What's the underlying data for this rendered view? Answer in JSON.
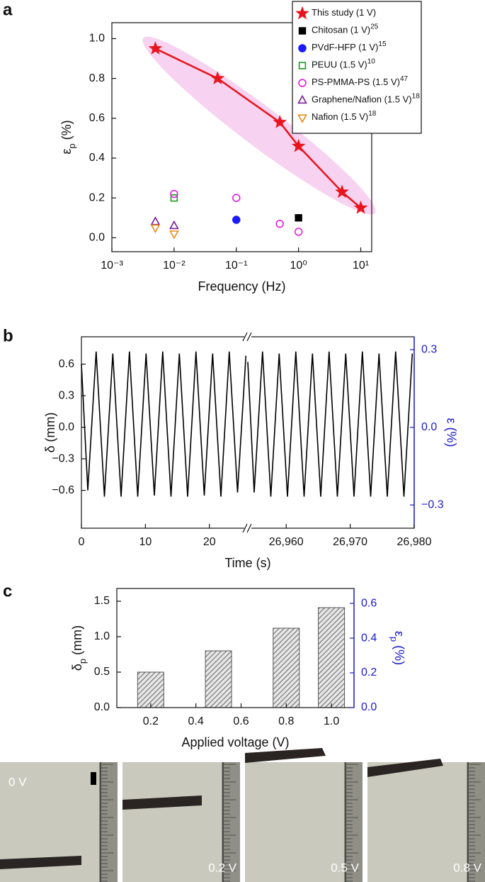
{
  "chart_data": [
    {
      "type": "scatter",
      "panel": "a",
      "xscale": "log",
      "xlabel": "Frequency (Hz)",
      "ylabel": {
        "main": "ε",
        "sub": "p",
        "rest": " (%)"
      },
      "xlim": [
        0.001,
        15
      ],
      "ylim": [
        -0.07,
        1.08
      ],
      "xticks": [
        {
          "value": 0.001,
          "label": "10⁻³"
        },
        {
          "value": 0.01,
          "label": "10⁻²"
        },
        {
          "value": 0.1,
          "label": "10⁻¹"
        },
        {
          "value": 1,
          "label": "10⁰"
        },
        {
          "value": 10,
          "label": "10¹"
        }
      ],
      "yticks": [
        {
          "value": 0,
          "label": "0.0"
        },
        0.2,
        0.4,
        0.6,
        0.8,
        {
          "value": 1,
          "label": "1.0"
        }
      ],
      "legend": "upper right",
      "series": [
        {
          "name": "This study (1 V)",
          "color": "#e8141c",
          "marker": "star",
          "filled": true,
          "line": true,
          "x": [
            0.005,
            0.05,
            0.5,
            1,
            5,
            10
          ],
          "values": [
            0.95,
            0.8,
            0.58,
            0.46,
            0.23,
            0.15
          ]
        },
        {
          "name": "Chitosan (1 V)",
          "ref": "25",
          "color": "#000000",
          "marker": "square",
          "filled": true,
          "x": [
            1
          ],
          "values": [
            0.1
          ]
        },
        {
          "name": "PVdF-HFP (1 V)",
          "ref": "15",
          "color": "#1a1aff",
          "marker": "circle",
          "filled": true,
          "x": [
            0.1
          ],
          "values": [
            0.09
          ]
        },
        {
          "name": "PEUU (1.5 V)",
          "ref": "10",
          "color": "#1a9a1a",
          "marker": "square",
          "filled": false,
          "x": [
            0.01
          ],
          "values": [
            0.2
          ]
        },
        {
          "name": "PS-PMMA-PS (1.5 V)",
          "ref": "47",
          "color": "#e020e0",
          "marker": "circle",
          "filled": false,
          "x": [
            0.01,
            0.1,
            0.5,
            1
          ],
          "values": [
            0.22,
            0.2,
            0.07,
            0.03
          ]
        },
        {
          "name": "Graphene/Nafion (1.5 V)",
          "ref": "18",
          "color": "#7a1f9a",
          "marker": "triangle-up",
          "filled": false,
          "x": [
            0.005,
            0.01
          ],
          "values": [
            0.08,
            0.06
          ]
        },
        {
          "name": "Nafion (1.5 V)",
          "ref": "18",
          "color": "#e8891a",
          "marker": "triangle-down",
          "filled": false,
          "x": [
            0.005,
            0.01
          ],
          "values": [
            0.05,
            0.02
          ]
        }
      ]
    },
    {
      "type": "line",
      "panel": "b",
      "xlabel": "Time (s)",
      "ylabel": "δ (mm)",
      "y2label": "ε (%)",
      "xlim": [
        0,
        26980
      ],
      "xbreak": [
        26,
        26954
      ],
      "ylim": [
        -0.96,
        0.86
      ],
      "y2lim": [
        -0.39,
        0.35
      ],
      "xticks": [
        0,
        10,
        20,
        {
          "value": 26960,
          "label": "26,960"
        },
        {
          "value": 26970,
          "label": "26,970"
        },
        {
          "value": 26980,
          "label": "26,980"
        }
      ],
      "yticks": [
        0.6,
        0.3,
        {
          "value": 0,
          "label": "0.0"
        },
        {
          "value": -0.3,
          "label": "−0.3"
        },
        {
          "value": -0.6,
          "label": "−0.6"
        }
      ],
      "y2ticks": [
        0.3,
        {
          "value": 0,
          "label": "0.0"
        },
        {
          "value": -0.3,
          "label": "−0.3"
        }
      ],
      "y2color": "#1a1acc",
      "series": [
        {
          "color": "#000000",
          "x": [
            0,
            1.0,
            2.3,
            3.6,
            4.9,
            6.2,
            7.5,
            8.8,
            10.1,
            11.4,
            12.7,
            14.0,
            15.3,
            16.6,
            17.9,
            19.2,
            20.5,
            21.8,
            23.1,
            24.4,
            25.7,
            null,
            26954,
            26955,
            26956.3,
            26957.6,
            26958.9,
            26960.2,
            26961.5,
            26962.8,
            26964.1,
            26965.4,
            26966.7,
            26968.0,
            26969.3,
            26970.6,
            26971.9,
            26973.2,
            26974.5,
            26975.8,
            26977.1,
            26978.4,
            26979.7
          ],
          "values": [
            0.6,
            -0.6,
            0.72,
            -0.66,
            0.7,
            -0.66,
            0.72,
            -0.66,
            0.7,
            -0.65,
            0.72,
            -0.66,
            0.7,
            -0.66,
            0.72,
            -0.65,
            0.7,
            -0.66,
            0.72,
            -0.62,
            0.68,
            null,
            0.62,
            -0.62,
            0.72,
            -0.66,
            0.7,
            -0.66,
            0.72,
            -0.66,
            0.7,
            -0.66,
            0.72,
            -0.66,
            0.7,
            -0.66,
            0.72,
            -0.66,
            0.7,
            -0.66,
            0.72,
            -0.66,
            0.7
          ]
        }
      ]
    },
    {
      "type": "bar",
      "panel": "c",
      "xlabel": "Applied voltage (V)",
      "ylabel": {
        "main": "δ",
        "sub": "p",
        "rest": " (mm)"
      },
      "y2label": {
        "main": "ε",
        "sub": "p",
        "rest": " (%)"
      },
      "xlim": [
        0.05,
        1.1
      ],
      "ylim": [
        0,
        1.68
      ],
      "y2lim": [
        0,
        0.686
      ],
      "xticks": [
        0.2,
        0.4,
        0.6,
        0.8,
        {
          "value": 1,
          "label": "1.0"
        }
      ],
      "yticks": [
        {
          "value": 0,
          "label": "0.0"
        },
        0.5,
        {
          "value": 1,
          "label": "1.0"
        },
        1.5
      ],
      "y2ticks": [
        {
          "value": 0,
          "label": "0.0"
        },
        0.2,
        0.4,
        0.6
      ],
      "y2color": "#1a1acc",
      "color": "#555555",
      "x": [
        0.2,
        0.5,
        0.8,
        1.0
      ],
      "values": [
        0.5,
        0.8,
        1.12,
        1.41
      ]
    }
  ],
  "photos": {
    "labels": [
      "0 V",
      "0.2 V",
      "0.5 V",
      "0.8 V"
    ]
  }
}
